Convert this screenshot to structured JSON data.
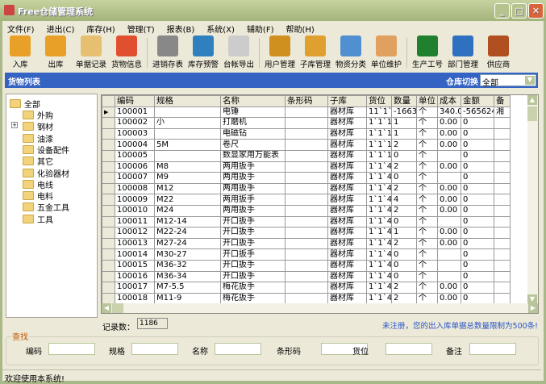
{
  "title": "Free仓储管理系统",
  "menu": [
    "文件(F)",
    "进出(C)",
    "库存(H)",
    "管理(T)",
    "报表(B)",
    "系统(X)",
    "辅助(F)",
    "帮助(H)"
  ],
  "toolbar": [
    {
      "label": "入库",
      "icon": "stock-in-icon",
      "color": "#e8a028"
    },
    {
      "label": "出库",
      "icon": "stock-out-icon",
      "color": "#e8a028"
    },
    {
      "label": "单据记录",
      "icon": "document-record-icon",
      "color": "#e6c070"
    },
    {
      "label": "货物信息",
      "icon": "goods-info-icon",
      "color": "#e05030"
    },
    {
      "sep": true
    },
    {
      "label": "进销存表",
      "icon": "report-icon",
      "color": "#888"
    },
    {
      "label": "库存预警",
      "icon": "inventory-alert-icon",
      "color": "#3080c0"
    },
    {
      "label": "台帐导出",
      "icon": "ledger-export-icon",
      "color": "#ccc"
    },
    {
      "sep": true
    },
    {
      "label": "用户管理",
      "icon": "user-manage-icon",
      "color": "#d09020"
    },
    {
      "label": "子库管理",
      "icon": "sub-warehouse-icon",
      "color": "#e0a030"
    },
    {
      "label": "物资分类",
      "icon": "category-icon",
      "color": "#5090d0"
    },
    {
      "label": "单位维护",
      "icon": "unit-icon",
      "color": "#e0a060"
    },
    {
      "sep": true
    },
    {
      "label": "生产工号",
      "icon": "production-id-icon",
      "color": "#208030"
    },
    {
      "label": "部门管理",
      "icon": "department-icon",
      "color": "#3070c0"
    },
    {
      "label": "供应商",
      "icon": "supplier-icon",
      "color": "#b05020"
    }
  ],
  "panel": {
    "title": "货物列表",
    "switch_label": "仓库切换",
    "warehouse": "全部"
  },
  "tree": {
    "root": "全部",
    "items": [
      "外购",
      "钢材",
      "油漆",
      "设备配件",
      "其它",
      "化验器材",
      "电线",
      "电料",
      "五金工具",
      "工具"
    ],
    "expandable": "钢材"
  },
  "grid": {
    "columns": [
      "编码",
      "规格",
      "名称",
      "条形码",
      "子库",
      "货位",
      "数量",
      "单位",
      "成本",
      "金额",
      "备"
    ],
    "rows": [
      [
        "100001",
        "",
        "电锤",
        "",
        "器材库",
        "11`1`",
        "-1663.",
        "个",
        "340.0",
        "-565624",
        "湘"
      ],
      [
        "100002",
        "小",
        "打磨机",
        "",
        "器材库",
        "1`1`1",
        "1",
        "个",
        "0.00",
        "0",
        ""
      ],
      [
        "100003",
        "",
        "电磁钻",
        "",
        "器材库",
        "1`1`1",
        "1",
        "个",
        "0.00",
        "0",
        ""
      ],
      [
        "100004",
        "5M",
        "卷尺",
        "",
        "器材库",
        "1`1`1",
        "2",
        "个",
        "0.00",
        "0",
        ""
      ],
      [
        "100005",
        "",
        "数显家用万能表",
        "",
        "器材库",
        "1`1`1",
        "0",
        "个",
        "",
        "0",
        ""
      ],
      [
        "100006",
        "M8",
        "两用扳手",
        "",
        "器材库",
        "1`1`4",
        "2",
        "个",
        "0.00",
        "0",
        ""
      ],
      [
        "100007",
        "M9",
        "两用扳手",
        "",
        "器材库",
        "1`1`4",
        "0",
        "个",
        "",
        "0",
        ""
      ],
      [
        "100008",
        "M12",
        "两用扳手",
        "",
        "器材库",
        "1`1`4",
        "2",
        "个",
        "0.00",
        "0",
        ""
      ],
      [
        "100009",
        "M22",
        "两用扳手",
        "",
        "器材库",
        "1`1`4",
        "4",
        "个",
        "0.00",
        "0",
        ""
      ],
      [
        "100010",
        "M24",
        "两用扳手",
        "",
        "器材库",
        "1`1`4",
        "2",
        "个",
        "0.00",
        "0",
        ""
      ],
      [
        "100011",
        "M12-14",
        "开口扳手",
        "",
        "器材库",
        "1`1`4",
        "0",
        "个",
        "",
        "0",
        ""
      ],
      [
        "100012",
        "M22-24",
        "开口扳手",
        "",
        "器材库",
        "1`1`4",
        "1",
        "个",
        "0.00",
        "0",
        ""
      ],
      [
        "100013",
        "M27-24",
        "开口扳手",
        "",
        "器材库",
        "1`1`4",
        "2",
        "个",
        "0.00",
        "0",
        ""
      ],
      [
        "100014",
        "M30-27",
        "开口扳手",
        "",
        "器材库",
        "1`1`4",
        "0",
        "个",
        "",
        "0",
        ""
      ],
      [
        "100015",
        "M36-32",
        "开口扳手",
        "",
        "器材库",
        "1`1`4",
        "0",
        "个",
        "",
        "0",
        ""
      ],
      [
        "100016",
        "M36-34",
        "开口扳手",
        "",
        "器材库",
        "1`1`4",
        "0",
        "个",
        "",
        "0",
        ""
      ],
      [
        "100017",
        "M7-5.5",
        "梅花扳手",
        "",
        "器材库",
        "1`1`4",
        "2",
        "个",
        "0.00",
        "0",
        ""
      ],
      [
        "100018",
        "M11-9",
        "梅花扳手",
        "",
        "器材库",
        "1`1`4",
        "2",
        "个",
        "0.00",
        "0",
        ""
      ]
    ]
  },
  "record": {
    "label": "记录数：",
    "count": "1186"
  },
  "notice": "未注册，您的出入库单据总数量限制为500条!",
  "search": {
    "title": "查找",
    "fields": [
      "编码",
      "规格",
      "名称",
      "条形码",
      "货位",
      "备注"
    ]
  },
  "status": "欢迎使用本系统!"
}
